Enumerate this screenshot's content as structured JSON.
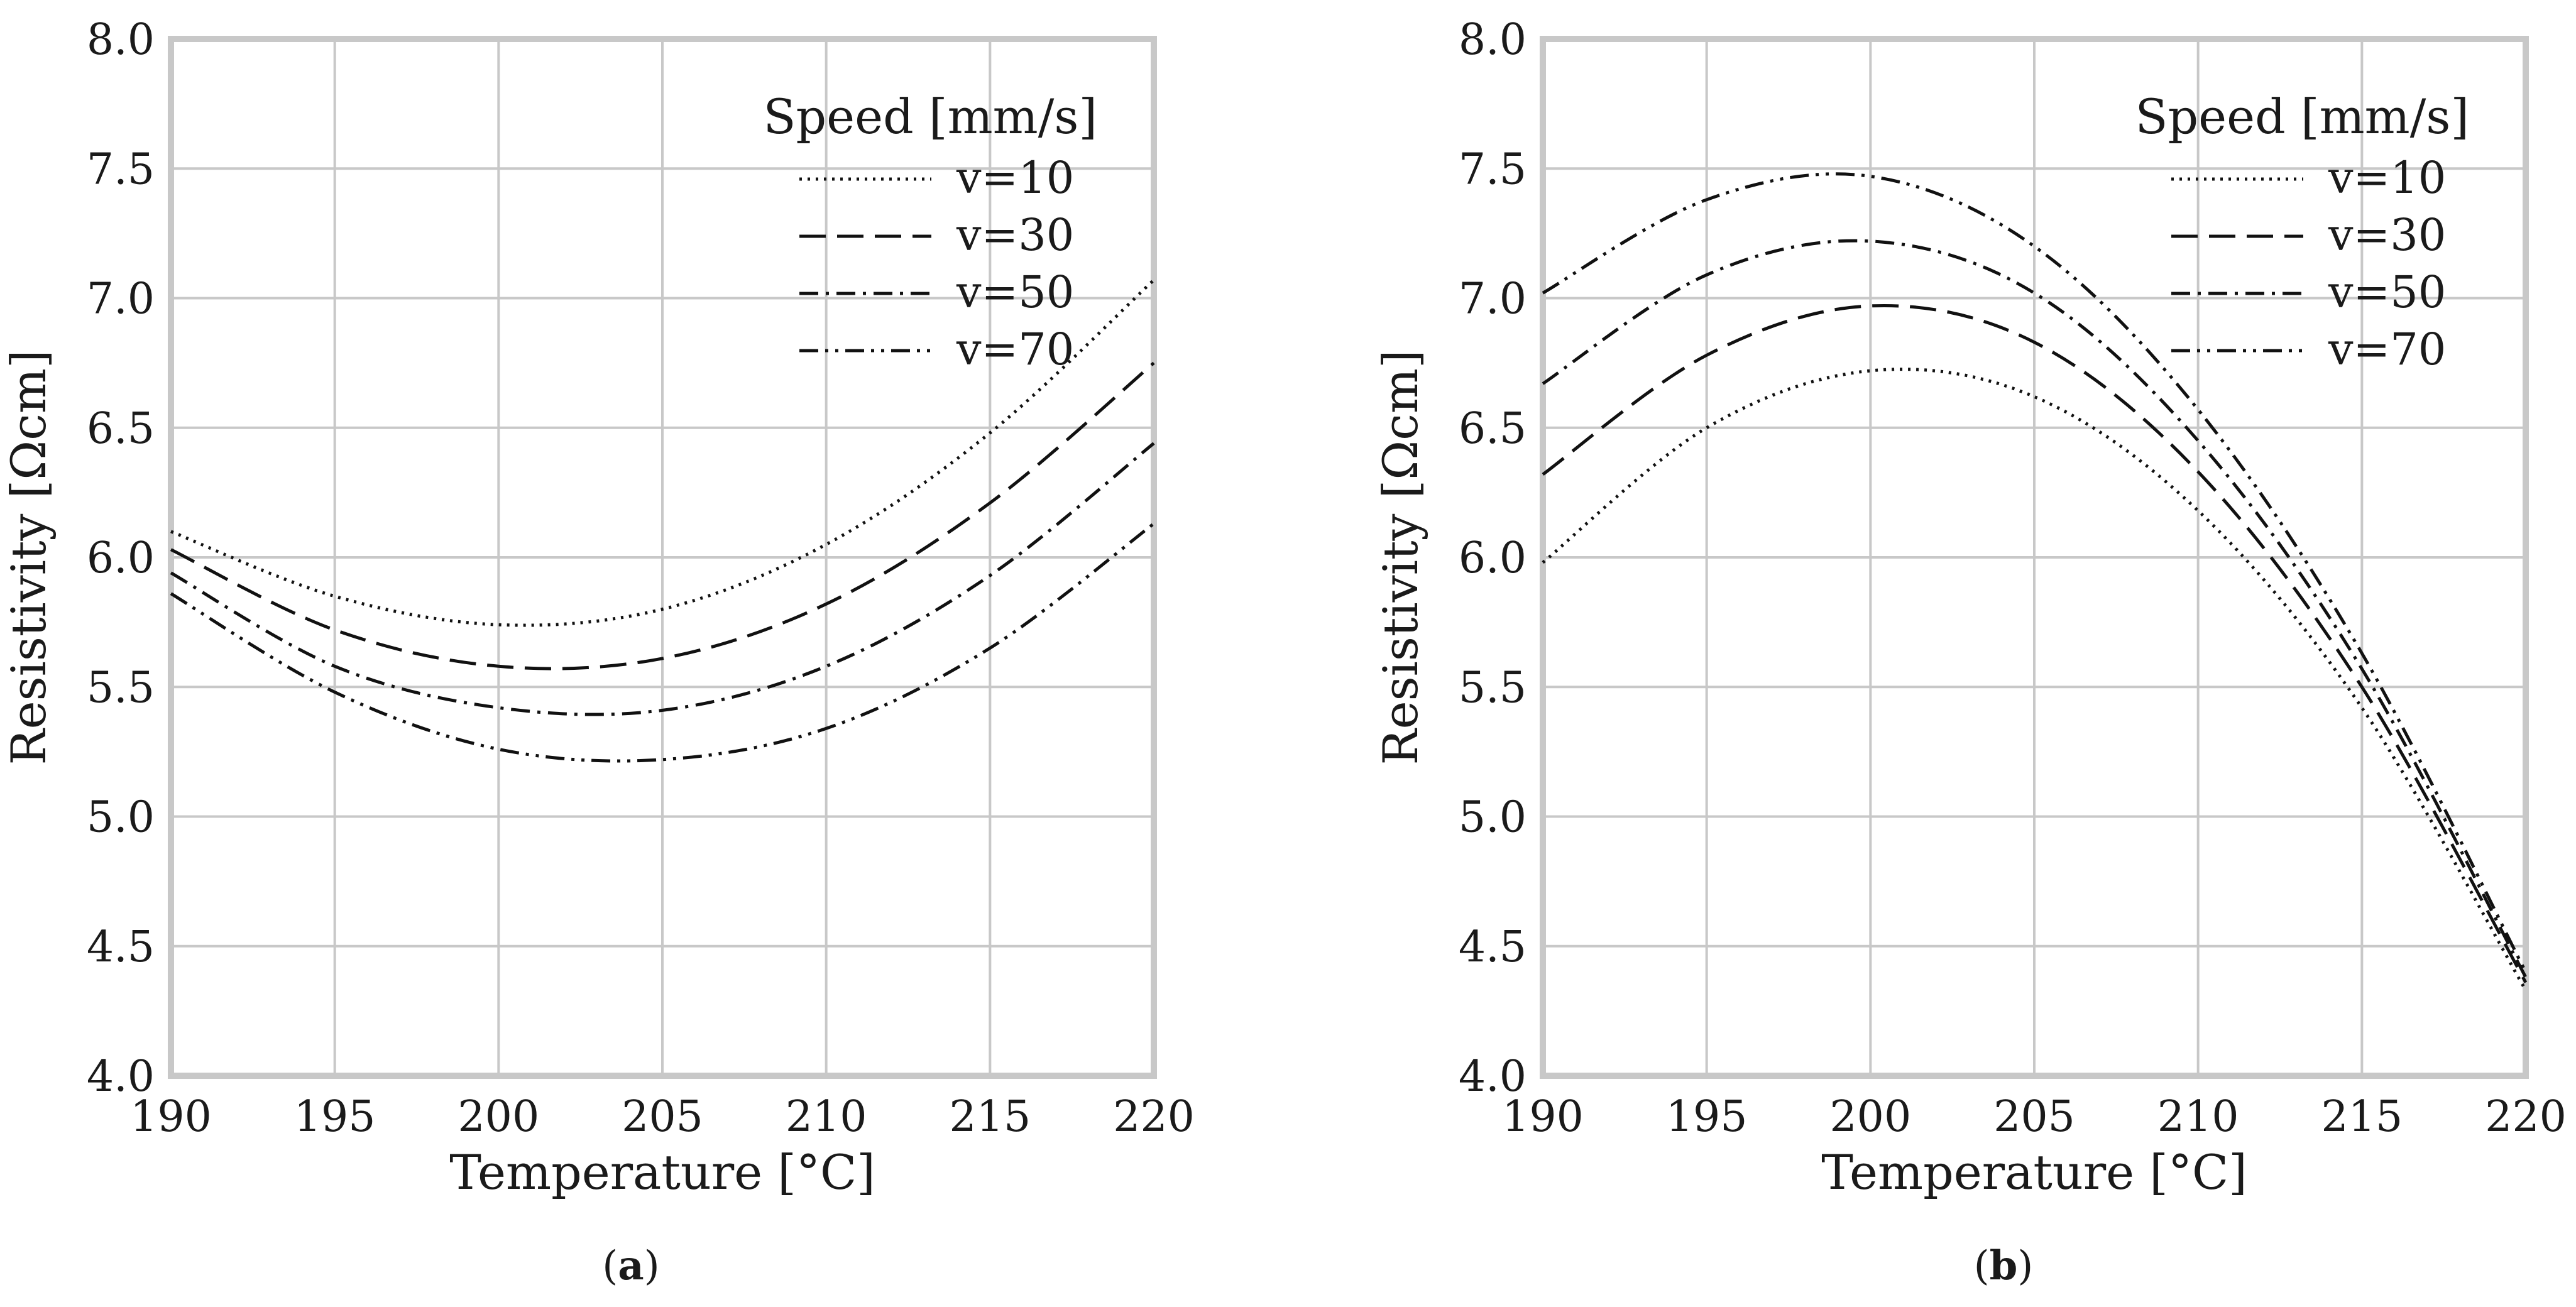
{
  "chart_data": [
    {
      "type": "line",
      "title": "",
      "caption": "(a)",
      "caption_letter": "a",
      "xlabel": "Temperature [°C]",
      "ylabel": "Resistivity [Ωcm]",
      "xlim": [
        190,
        220
      ],
      "ylim": [
        4.0,
        8.0
      ],
      "xticks": [
        "190",
        "195",
        "200",
        "205",
        "210",
        "215",
        "220"
      ],
      "yticks": [
        "4.0",
        "4.5",
        "5.0",
        "5.5",
        "6.0",
        "6.5",
        "7.0",
        "7.5",
        "8.0"
      ],
      "grid": true,
      "legend_title": "Speed [mm/s]",
      "legend_position": "top-right",
      "x": [
        190,
        195,
        200,
        205,
        210,
        215,
        220
      ],
      "series": [
        {
          "name": "v=10",
          "style": "dotted",
          "values": [
            6.1,
            5.85,
            5.74,
            5.8,
            6.05,
            6.48,
            7.07
          ]
        },
        {
          "name": "v=30",
          "style": "dashed",
          "values": [
            6.03,
            5.72,
            5.58,
            5.61,
            5.82,
            6.21,
            6.75
          ]
        },
        {
          "name": "v=50",
          "style": "dashdot",
          "values": [
            5.94,
            5.58,
            5.42,
            5.41,
            5.58,
            5.93,
            6.44
          ]
        },
        {
          "name": "v=70",
          "style": "dashdotdot",
          "values": [
            5.86,
            5.48,
            5.26,
            5.22,
            5.34,
            5.65,
            6.13
          ]
        }
      ]
    },
    {
      "type": "line",
      "title": "",
      "caption": "(b)",
      "caption_letter": "b",
      "xlabel": "Temperature [°C]",
      "ylabel": "Resistivity [Ωcm]",
      "xlim": [
        190,
        220
      ],
      "ylim": [
        4.0,
        8.0
      ],
      "xticks": [
        "190",
        "195",
        "200",
        "205",
        "210",
        "215",
        "220"
      ],
      "yticks": [
        "4.0",
        "4.5",
        "5.0",
        "5.5",
        "6.0",
        "6.5",
        "7.0",
        "7.5",
        "8.0"
      ],
      "grid": true,
      "legend_title": "Speed [mm/s]",
      "legend_position": "top-right",
      "x": [
        190,
        195,
        200,
        205,
        210,
        215,
        220
      ],
      "series": [
        {
          "name": "v=10",
          "style": "dotted",
          "values": [
            5.98,
            6.5,
            6.72,
            6.62,
            6.18,
            5.42,
            4.33
          ]
        },
        {
          "name": "v=30",
          "style": "dashed",
          "values": [
            6.32,
            6.78,
            6.97,
            6.83,
            6.33,
            5.5,
            4.36
          ]
        },
        {
          "name": "v=50",
          "style": "dashdot",
          "values": [
            6.67,
            7.09,
            7.22,
            7.02,
            6.45,
            5.57,
            4.38
          ]
        },
        {
          "name": "v=70",
          "style": "dashdotdot",
          "values": [
            7.02,
            7.38,
            7.47,
            7.2,
            6.57,
            5.63,
            4.4
          ]
        }
      ]
    }
  ]
}
